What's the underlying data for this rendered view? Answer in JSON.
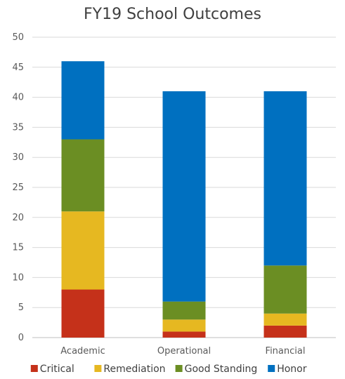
{
  "chart_data": {
    "type": "bar",
    "stacked": true,
    "title": "FY19 School Outcomes",
    "categories": [
      "Academic",
      "Operational",
      "Financial"
    ],
    "series": [
      {
        "name": "Critical",
        "color": "#c5311a",
        "values": [
          8,
          1,
          2
        ]
      },
      {
        "name": "Remediation",
        "color": "#e6b821",
        "values": [
          13,
          2,
          2
        ]
      },
      {
        "name": "Good Standing",
        "color": "#6b8e23",
        "values": [
          12,
          3,
          8
        ]
      },
      {
        "name": "Honor",
        "color": "#0070c0",
        "values": [
          13,
          35,
          29
        ]
      }
    ],
    "ylim": [
      0,
      50
    ],
    "yticks": [
      0,
      5,
      10,
      15,
      20,
      25,
      30,
      35,
      40,
      45,
      50
    ],
    "grid": true,
    "legend": "bottom"
  }
}
